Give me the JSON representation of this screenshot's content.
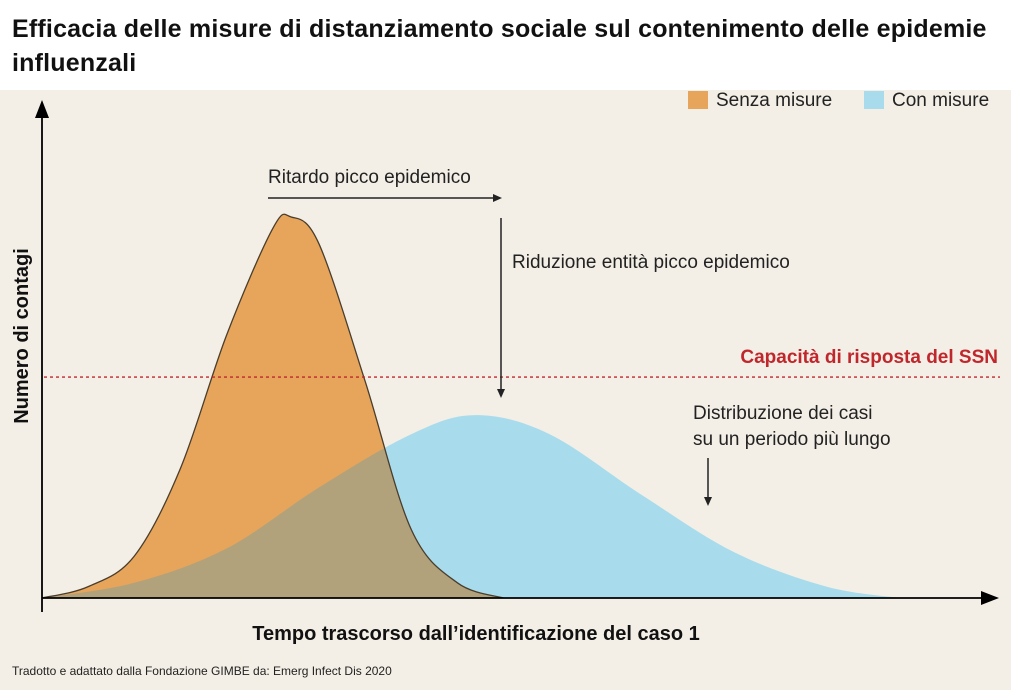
{
  "chart_data": {
    "type": "area",
    "title": "Efficacia delle misure di distanziamento sociale sul contenimento delle epidemie influenzali",
    "xlabel": "Tempo trascorso dall’identificazione del caso 1",
    "ylabel": "Numero di contagi",
    "xlim": [
      0,
      100
    ],
    "ylim": [
      0,
      100
    ],
    "legend_position": "top-right",
    "grid": false,
    "series": [
      {
        "name": "Senza misure",
        "color": "#e6a55a",
        "x": [
          0,
          5,
          10,
          15,
          20,
          25,
          27,
          30,
          35,
          40,
          45,
          50
        ],
        "y": [
          0,
          3,
          11,
          34,
          69,
          97,
          100,
          93,
          57,
          18,
          4,
          0
        ]
      },
      {
        "name": "Con misure",
        "color": "#a8dcec",
        "x": [
          0,
          10,
          20,
          30,
          40,
          47,
          55,
          65,
          75,
          85,
          93
        ],
        "y": [
          0,
          4,
          13,
          29,
          43,
          48,
          43,
          27,
          12,
          3,
          0
        ]
      }
    ],
    "reference_line": {
      "label": "Capacità di risposta del SSN",
      "y": 58,
      "color": "#c0272d"
    },
    "annotations": [
      {
        "id": "delay",
        "text": "Ritardo picco epidemico"
      },
      {
        "id": "reduction",
        "text": "Riduzione entità picco epidemico"
      },
      {
        "id": "distribution",
        "lines": [
          "Distribuzione dei casi",
          "su un periodo più lungo"
        ]
      }
    ]
  },
  "source": "Tradotto e adattato dalla Fondazione GIMBE da: Emerg Infect Dis 2020"
}
